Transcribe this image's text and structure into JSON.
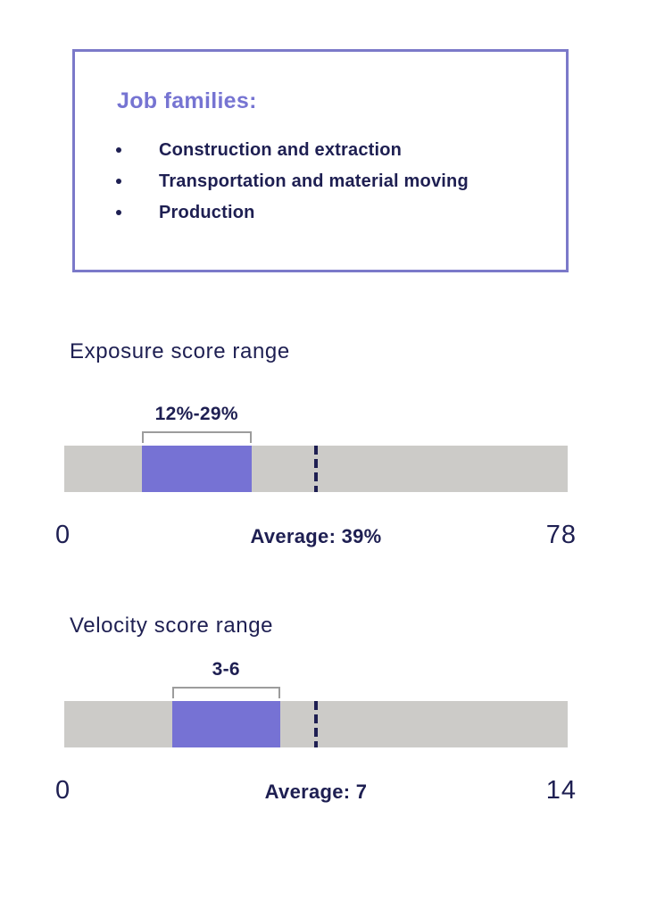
{
  "colors": {
    "accent_purple": "#7672d4",
    "box_border_purple": "#7b79c9",
    "heading_purple": "#7674d2",
    "dark_navy": "#1e1f52",
    "track_gray": "#cccbc8",
    "bracket_gray": "#9c9c9c"
  },
  "job_families_box": {
    "title": "Job families:",
    "items": [
      "Construction and extraction",
      "Transportation and material moving",
      "Production"
    ]
  },
  "chart_data": [
    {
      "type": "bar",
      "variant": "range-strip",
      "title": "Exposure score range",
      "range_label": "12%-29%",
      "range_min": 12,
      "range_max": 29,
      "average": 39,
      "average_label": "Average: 39%",
      "axis_min": 0,
      "axis_max": 78,
      "axis_min_label": "0",
      "axis_max_label": "78",
      "grid": false,
      "legend": false
    },
    {
      "type": "bar",
      "variant": "range-strip",
      "title": "Velocity score range",
      "range_label": "3-6",
      "range_min": 3,
      "range_max": 6,
      "average": 7,
      "average_label": "Average: 7",
      "axis_min": 0,
      "axis_max": 14,
      "axis_min_label": "0",
      "axis_max_label": "14",
      "grid": false,
      "legend": false
    }
  ]
}
